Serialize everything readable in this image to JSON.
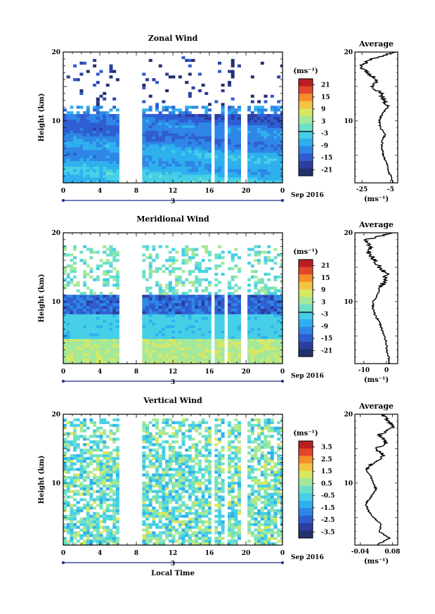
{
  "chart_data": [
    {
      "type": "heatmap",
      "title": "Zonal Wind",
      "ylabel": "Height (km)",
      "x_ticks": [
        "0",
        "4",
        "8",
        "12",
        "16",
        "20",
        "0"
      ],
      "xlim": [
        0,
        24
      ],
      "ylim": [
        1,
        20
      ],
      "y_ticks": [
        "10",
        "20"
      ],
      "date_label": "3",
      "month_label": "Sep 2016",
      "colorbar": {
        "unit": "(ms⁻¹)",
        "ticks": [
          "21",
          "15",
          "9",
          "3",
          "-3",
          "-9",
          "-15",
          "-21"
        ],
        "zero_line": true
      },
      "data_gaps_hours": [
        [
          6,
          8.8
        ],
        [
          16.3,
          16.7
        ],
        [
          17.7,
          18.1
        ],
        [
          19.6,
          20.2
        ]
      ],
      "profile": {
        "title": "Average",
        "x_ticks": [
          "-25",
          "-5"
        ],
        "xlim": [
          -30,
          0
        ],
        "unit": "(ms⁻¹)",
        "heights_km": [
          1,
          2,
          3,
          4,
          5,
          6,
          7,
          8,
          9,
          10,
          11,
          12,
          13,
          14,
          15,
          16,
          17,
          18,
          19,
          20
        ],
        "values": [
          -3,
          -5,
          -7,
          -8,
          -10,
          -11,
          -11,
          -9,
          -12,
          -13,
          -11,
          -7,
          -9,
          -12,
          -18,
          -14,
          -22,
          -26,
          -18,
          -2
        ]
      }
    },
    {
      "type": "heatmap",
      "title": "Meridional Wind",
      "ylabel": "Height (km)",
      "x_ticks": [
        "0",
        "4",
        "8",
        "12",
        "16",
        "20",
        "0"
      ],
      "xlim": [
        0,
        24
      ],
      "ylim": [
        1,
        20
      ],
      "y_ticks": [
        "10",
        "20"
      ],
      "date_label": "3",
      "month_label": "Sep 2016",
      "colorbar": {
        "unit": "(ms⁻¹)",
        "ticks": [
          "21",
          "15",
          "9",
          "3",
          "-3",
          "-9",
          "-15",
          "-21"
        ],
        "zero_line": true
      },
      "data_gaps_hours": [
        [
          6,
          8.8
        ],
        [
          16.3,
          16.7
        ],
        [
          17.7,
          18.1
        ],
        [
          19.6,
          20.2
        ]
      ],
      "profile": {
        "title": "Average",
        "x_ticks": [
          "-10",
          "0"
        ],
        "xlim": [
          -14,
          5
        ],
        "unit": "(ms⁻¹)",
        "heights_km": [
          1,
          2,
          3,
          4,
          5,
          6,
          7,
          8,
          9,
          10,
          11,
          12,
          13,
          14,
          15,
          16,
          17,
          18,
          19,
          20
        ],
        "values": [
          1,
          1,
          0,
          0,
          -1,
          -2,
          -3,
          -5,
          -6,
          -6,
          -4,
          -3,
          -1,
          0,
          -3,
          -5,
          -8,
          -7,
          -9,
          3
        ]
      }
    },
    {
      "type": "heatmap",
      "title": "Vertical Wind",
      "ylabel": "Height (km)",
      "xlabel": "Local Time",
      "x_ticks": [
        "0",
        "4",
        "8",
        "12",
        "16",
        "20",
        "0"
      ],
      "xlim": [
        0,
        24
      ],
      "ylim": [
        1,
        20
      ],
      "y_ticks": [
        "10",
        "20"
      ],
      "date_label": "3",
      "month_label": "Sep 2016",
      "colorbar": {
        "unit": "(ms⁻¹)",
        "ticks": [
          "3.5",
          "2.5",
          "1.5",
          "0.5",
          "-0.5",
          "-1.5",
          "-2.5",
          "-3.5"
        ],
        "zero_line": false
      },
      "data_gaps_hours": [
        [
          6,
          8.8
        ],
        [
          16.3,
          16.7
        ],
        [
          17.7,
          18.1
        ],
        [
          19.6,
          20.2
        ]
      ],
      "profile": {
        "title": "Average",
        "x_ticks": [
          "-0.04",
          "0.08"
        ],
        "xlim": [
          -0.06,
          0.1
        ],
        "unit": "(ms⁻¹)",
        "heights_km": [
          1,
          2,
          3,
          4,
          5,
          6,
          7,
          8,
          9,
          10,
          11,
          12,
          13,
          14,
          15,
          16,
          17,
          18,
          19,
          20
        ],
        "values": [
          0.02,
          0.07,
          0.03,
          0.04,
          0.01,
          -0.01,
          -0.02,
          0.0,
          0.02,
          0.01,
          0.0,
          -0.02,
          0.01,
          0.05,
          0.02,
          0.06,
          0.03,
          0.08,
          0.07,
          0.04
        ]
      }
    }
  ]
}
